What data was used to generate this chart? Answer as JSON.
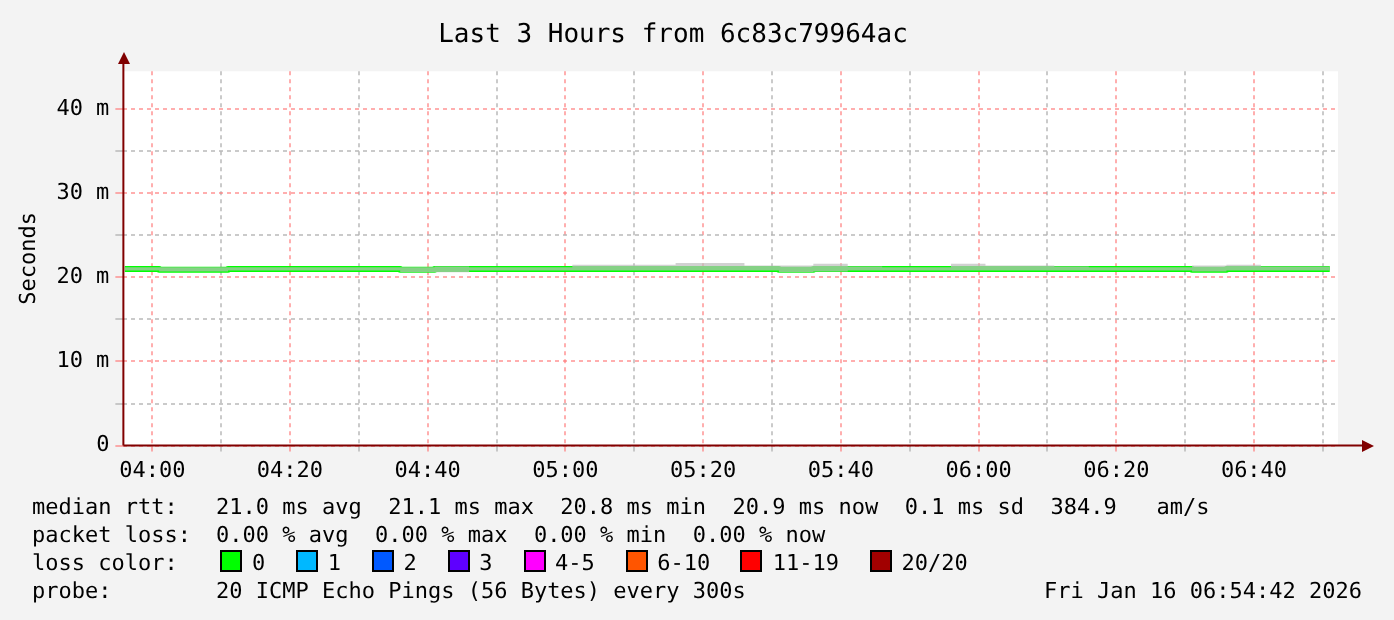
{
  "chart_data": {
    "type": "step",
    "title": "Last 3 Hours from 6c83c79964ac",
    "ylabel": "Seconds",
    "x": [
      3.9333,
      4.0167,
      4.1,
      4.1833,
      4.2667,
      4.35,
      4.4333,
      4.5167,
      4.6,
      4.6833,
      4.7667,
      4.85,
      4.9333,
      5.0167,
      5.1,
      5.1833,
      5.2667,
      5.35,
      5.4333,
      5.5167,
      5.6,
      5.6833,
      5.7667,
      5.85,
      5.9333,
      6.0167,
      6.1,
      6.1833,
      6.2667,
      6.35,
      6.4333,
      6.5167,
      6.6,
      6.6833,
      6.7667,
      6.85
    ],
    "series": [
      {
        "name": "0",
        "color": "#00ff00",
        "values": [
          21.0,
          21.0,
          20.9,
          20.9,
          21.0,
          21.0,
          21.0,
          21.0,
          21.0,
          20.9,
          21.0,
          21.0,
          21.0,
          21.0,
          21.0,
          21.0,
          21.0,
          21.0,
          21.0,
          21.0,
          20.9,
          21.0,
          21.0,
          21.0,
          21.0,
          21.0,
          21.0,
          21.0,
          21.0,
          21.0,
          21.0,
          21.0,
          20.9,
          21.0,
          21.0,
          21.0
        ],
        "lower": [
          20.8,
          20.8,
          20.7,
          20.7,
          20.8,
          20.8,
          20.8,
          20.8,
          20.8,
          20.6,
          20.6,
          20.8,
          20.8,
          20.8,
          20.8,
          20.8,
          20.8,
          20.8,
          20.8,
          20.8,
          20.6,
          20.7,
          20.8,
          20.8,
          20.8,
          20.8,
          20.8,
          20.8,
          20.8,
          20.8,
          20.8,
          20.8,
          20.7,
          20.8,
          20.8,
          20.8
        ],
        "upper": [
          21.5,
          21.2,
          21.2,
          21.2,
          21.2,
          21.2,
          21.2,
          21.2,
          21.2,
          21.2,
          21.3,
          21.2,
          21.2,
          21.2,
          21.5,
          21.5,
          21.5,
          21.7,
          21.7,
          21.4,
          21.4,
          21.6,
          21.3,
          21.2,
          21.2,
          21.6,
          21.4,
          21.4,
          21.3,
          21.2,
          21.2,
          21.2,
          21.4,
          21.5,
          21.3,
          21.3
        ]
      }
    ],
    "xlim": [
      3.93,
      6.87
    ],
    "xticks": [
      {
        "value": 4,
        "label": "04:00"
      },
      {
        "value": 4.1667,
        "label": null
      },
      {
        "value": 4.3333,
        "label": "04:20"
      },
      {
        "value": 4.5,
        "label": null
      },
      {
        "value": 4.6667,
        "label": "04:40"
      },
      {
        "value": 4.8333,
        "label": null
      },
      {
        "value": 5,
        "label": "05:00"
      },
      {
        "value": 5.1667,
        "label": null
      },
      {
        "value": 5.3333,
        "label": "05:20"
      },
      {
        "value": 5.5,
        "label": null
      },
      {
        "value": 5.6667,
        "label": "05:40"
      },
      {
        "value": 5.8333,
        "label": null
      },
      {
        "value": 6,
        "label": "06:00"
      },
      {
        "value": 6.1667,
        "label": null
      },
      {
        "value": 6.3333,
        "label": "06:20"
      },
      {
        "value": 6.5,
        "label": null
      },
      {
        "value": 6.6667,
        "label": "06:40"
      },
      {
        "value": 6.8333,
        "label": null
      }
    ],
    "ylim": [
      0,
      44.5
    ],
    "yticks": [
      {
        "value": 0,
        "label": "0"
      },
      {
        "value": 5,
        "label": null
      },
      {
        "value": 10,
        "label": "10 m"
      },
      {
        "value": 15,
        "label": null
      },
      {
        "value": 20,
        "label": "20 m"
      },
      {
        "value": 25,
        "label": null
      },
      {
        "value": 30,
        "label": "30 m"
      },
      {
        "value": 35,
        "label": null
      },
      {
        "value": 40,
        "label": "40 m"
      }
    ],
    "grid": true,
    "legend": "bottom left",
    "annotations": [
      "median rtt:",
      "21.0 ms avg  21.1 ms max  20.8 ms min  20.9 ms now  0.1 ms sd  384.9   am/s",
      "packet loss:",
      "0.00 % avg  0.00 % max  0.00 % min  0.00 % now",
      "loss color:",
      "1",
      "2",
      "3",
      "4-5",
      "6-10",
      "11-19",
      "20/20",
      "probe:",
      "20 ICMP Echo Pings (56 Bytes) every 300s",
      "Fri Jan 16 06:54:42 2026"
    ]
  }
}
